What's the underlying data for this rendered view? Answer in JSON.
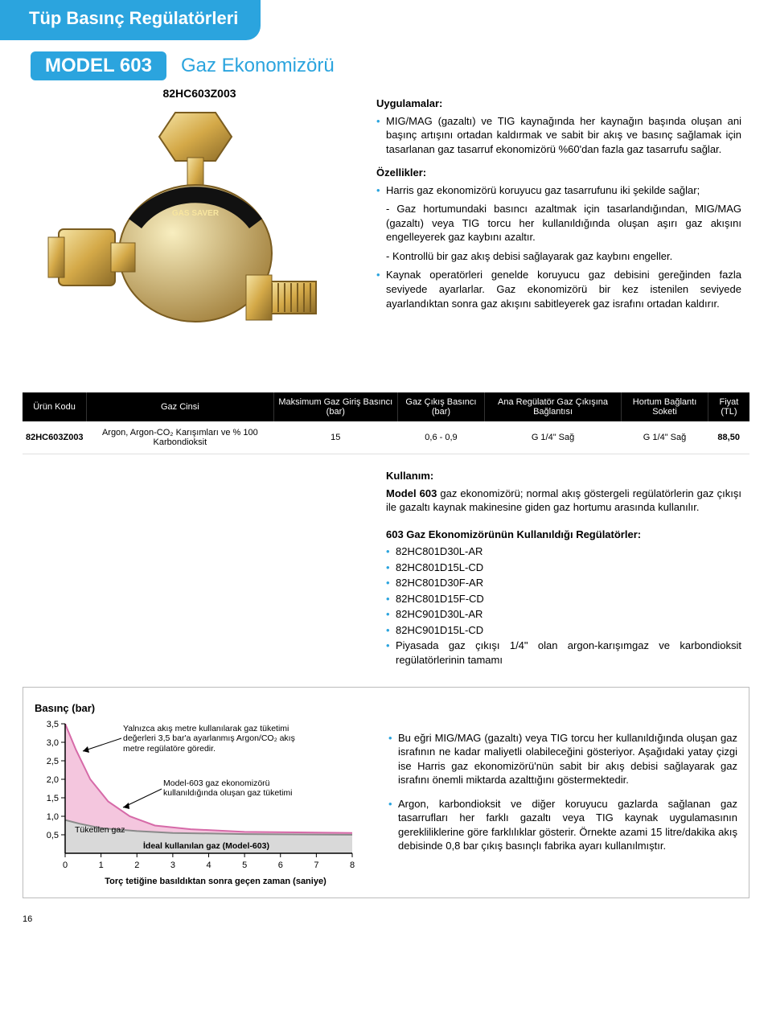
{
  "header": {
    "tab": "Tüp Basınç Regülatörleri"
  },
  "model": {
    "badge": "MODEL 603",
    "subtitle": "Gaz Ekonomizörü"
  },
  "product_code": "82HC603Z003",
  "uygulamalar": {
    "heading": "Uygulamalar:",
    "items": [
      "MIG/MAG (gazaltı) ve TIG kaynağında her kaynağın başında oluşan ani başınç artışını ortadan kaldırmak ve sabit bir akış ve basınç sağlamak için tasarlanan gaz tasarruf ekonomizörü %60'dan fazla gaz tasarrufu sağlar."
    ]
  },
  "ozellikler": {
    "heading": "Özellikler:",
    "items": [
      "Harris gaz ekonomizörü koruyucu gaz tasarrufunu iki şekilde sağlar;"
    ],
    "subs": [
      "- Gaz hortumundaki basıncı azaltmak için tasarlandığından, MIG/MAG (gazaltı) veya TIG torcu her kullanıldığında oluşan aşırı gaz akışını engelleyerek gaz kaybını azaltır.",
      "- Kontrollü bir gaz akış debisi sağlayarak gaz kaybını engeller."
    ],
    "items2": [
      "Kaynak operatörleri genelde koruyucu gaz debisini gereğinden fazla seviyede ayarlarlar. Gaz ekonomizörü bir kez istenilen seviyede ayarlandıktan sonra gaz akışını sabitleyerek gaz israfını ortadan kaldırır."
    ]
  },
  "table": {
    "columns": [
      "Ürün Kodu",
      "Gaz Cinsi",
      "Maksimum Gaz Giriş Basıncı (bar)",
      "Gaz Çıkış Basıncı (bar)",
      "Ana Regülatör Gaz Çıkışına Bağlantısı",
      "Hortum Bağlantı Soketi",
      "Fiyat (TL)"
    ],
    "row": {
      "code": "82HC603Z003",
      "gas": "Argon, Argon-CO₂ Karışımları ve % 100 Karbondioksit",
      "max_in": "15",
      "out": "0,6 - 0,9",
      "reg_conn": "G 1/4\" Sağ",
      "hose": "G 1/4\" Sağ",
      "price": "88,50"
    }
  },
  "usage": {
    "heading": "Kullanım:",
    "text": "Model 603 gaz ekonomizörü; normal akış göstergeli regülatörlerin gaz çıkışı ile gazaltı kaynak makinesine giden gaz hortumu arasında kullanılır.",
    "list_heading": "603 Gaz Ekonomizörünün Kullanıldığı Regülatörler:",
    "list": [
      "82HC801D30L-AR",
      "82HC801D15L-CD",
      "82HC801D30F-AR",
      "82HC801D15F-CD",
      "82HC901D30L-AR",
      "82HC901D15L-CD",
      "Piyasada gaz çıkışı 1/4\" olan argon-karışımgaz ve karbondioksit regülatörlerinin tamamı"
    ]
  },
  "chart": {
    "type": "line-area",
    "title": "Basınç (bar)",
    "xlabel": "Torç tetiğine basıldıktan sonra geçen zaman (saniye)",
    "y_ticks": [
      "0,5",
      "1,0",
      "1,5",
      "2,0",
      "2,5",
      "3,0",
      "3,5"
    ],
    "x_ticks": [
      "0",
      "1",
      "2",
      "3",
      "4",
      "5",
      "6",
      "7",
      "8"
    ],
    "xlim": [
      0,
      8
    ],
    "ylim": [
      0,
      3.5
    ],
    "colors": {
      "axis": "#000000",
      "curve_upper": "#d66aa8",
      "area_upper": "#f4c6de",
      "curve_lower": "#8a8a8a",
      "area_lower": "#d9d9d9",
      "background": "#ffffff"
    },
    "annotations": {
      "a1": "Yalnızca akış metre kullanılarak gaz tüketimi değerleri 3,5 bar'a ayarlanmış Argon/CO₂ akış metre regülatöre göredir.",
      "a2": "Model-603 gaz ekonomizörü kullanıldığında oluşan gaz tüketimi",
      "a3": "Tüketilen gaz",
      "a4": "İdeal kullanılan gaz (Model-603)"
    },
    "upper_curve": [
      [
        0,
        3.5
      ],
      [
        0.3,
        2.8
      ],
      [
        0.7,
        2.0
      ],
      [
        1.2,
        1.4
      ],
      [
        1.8,
        1.0
      ],
      [
        2.5,
        0.75
      ],
      [
        3.5,
        0.65
      ],
      [
        5,
        0.58
      ],
      [
        8,
        0.55
      ]
    ],
    "lower_curve": [
      [
        0,
        0.9
      ],
      [
        0.4,
        0.8
      ],
      [
        1,
        0.68
      ],
      [
        2,
        0.6
      ],
      [
        3,
        0.55
      ],
      [
        5,
        0.52
      ],
      [
        8,
        0.5
      ]
    ]
  },
  "bottom_notes": [
    "Bu eğri MIG/MAG (gazaltı) veya TIG torcu her kullanıldığında oluşan gaz israfının ne kadar maliyetli olabileceğini gösteriyor. Aşağıdaki yatay çizgi ise Harris gaz ekonomizörü'nün sabit bir akış debisi sağlayarak gaz israfını önemli miktarda azalttığını göstermektedir.",
    "Argon, karbondioksit ve diğer koruyucu gazlarda sağlanan gaz tasarrufları her farklı gazaltı veya TIG kaynak uygulamasının gerekliliklerine göre farklılıklar gösterir. Örnekte azami 15 litre/dakika akış debisinde 0,8 bar çıkış basınçlı fabrika ayarı kullanılmıştır."
  ],
  "page_number": "16"
}
